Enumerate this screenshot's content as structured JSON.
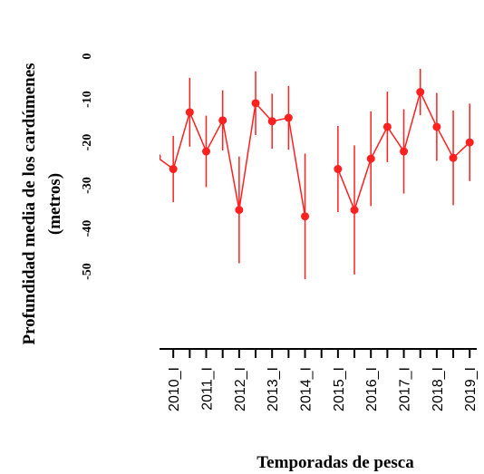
{
  "chart_data": {
    "type": "line",
    "y_label": [
      "Profundidad media de los cardúmenes",
      "(metros)"
    ],
    "x_label": "Temporadas de pesca",
    "categories": [
      null,
      "2010_I",
      null,
      "2011_I",
      null,
      "2012_I",
      null,
      "2013_I",
      null,
      "2014_I",
      null,
      "2015_I",
      null,
      "2016_I",
      null,
      "2017_I",
      null,
      "2018_I",
      null,
      "2019_I"
    ],
    "series": [
      {
        "color": "#ff2020",
        "values": [
          -23.4,
          -26.2,
          -13,
          -22.1,
          -14.9,
          -35.7,
          -10.9,
          -15.1,
          -14.3,
          -37.2,
          null,
          -26.2,
          -35.7,
          -23.8,
          -16.4,
          -22.1,
          -8.3,
          -16.4,
          -23.6,
          -20
        ],
        "errors": [
          10,
          7.7,
          8,
          8.3,
          7,
          12.4,
          7.4,
          6.4,
          7.4,
          14.6,
          null,
          10,
          15,
          11,
          8.2,
          9.8,
          5.4,
          7.9,
          11,
          9
        ]
      }
    ],
    "ylim": [
      -68,
      2
    ],
    "yticks": [
      0,
      -10,
      -20,
      -30,
      -40,
      -50
    ]
  }
}
